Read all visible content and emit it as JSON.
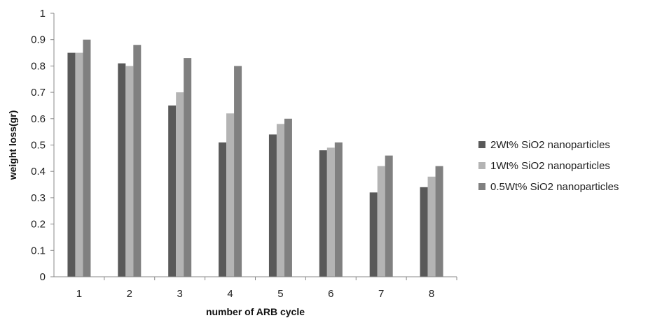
{
  "chart_data": {
    "type": "bar",
    "title": "",
    "xlabel": "number of ARB cycle",
    "ylabel": "weight loss(gr)",
    "ylim": [
      0,
      1
    ],
    "y_ticks": [
      "0",
      "0.1",
      "0.2",
      "0.3",
      "0.4",
      "0.5",
      "0.6",
      "0.7",
      "0.8",
      "0.9",
      "1"
    ],
    "categories": [
      "1",
      "2",
      "3",
      "4",
      "5",
      "6",
      "7",
      "8"
    ],
    "series": [
      {
        "name": "2Wt% SiO2 nanoparticles",
        "color": "#595959",
        "values": [
          0.85,
          0.81,
          0.65,
          0.51,
          0.54,
          0.48,
          0.32,
          0.34
        ]
      },
      {
        "name": "1Wt% SiO2 nanoparticles",
        "color": "#b4b4b4",
        "values": [
          0.85,
          0.8,
          0.7,
          0.62,
          0.58,
          0.49,
          0.42,
          0.38
        ]
      },
      {
        "name": "0.5Wt% SiO2 nanoparticles",
        "color": "#808080",
        "values": [
          0.9,
          0.88,
          0.83,
          0.8,
          0.6,
          0.51,
          0.46,
          0.42
        ]
      }
    ],
    "grid": false,
    "legend_position": "right"
  }
}
